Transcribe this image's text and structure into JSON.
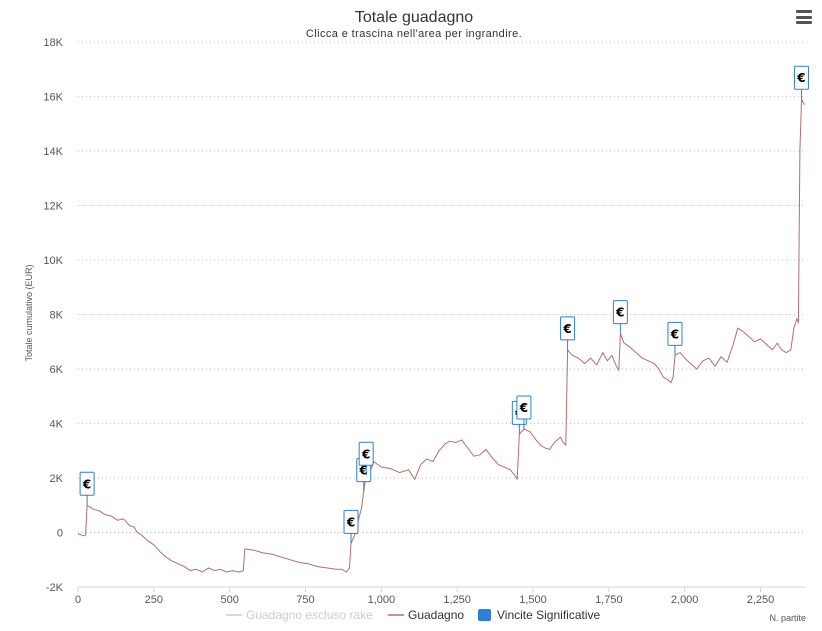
{
  "chart_data": {
    "type": "line",
    "title": "Totale guadagno",
    "subtitle": "Clicca e trascina nell'area per ingrandire.",
    "ylabel": "Totale cumulativo (EUR)",
    "xlabel": "N. partite",
    "xlim": [
      0,
      2400
    ],
    "ylim": [
      -2000,
      18000
    ],
    "x_ticks": [
      {
        "value": 0,
        "label": "0"
      },
      {
        "value": 250,
        "label": "250"
      },
      {
        "value": 500,
        "label": "500"
      },
      {
        "value": 750,
        "label": "750"
      },
      {
        "value": 1000,
        "label": "1,000"
      },
      {
        "value": 1250,
        "label": "1,250"
      },
      {
        "value": 1500,
        "label": "1,500"
      },
      {
        "value": 1750,
        "label": "1,750"
      },
      {
        "value": 2000,
        "label": "2,000"
      },
      {
        "value": 2250,
        "label": "2,250"
      }
    ],
    "y_ticks": [
      {
        "value": -2000,
        "label": "-2K"
      },
      {
        "value": 0,
        "label": "0"
      },
      {
        "value": 2000,
        "label": "2K"
      },
      {
        "value": 4000,
        "label": "4K"
      },
      {
        "value": 6000,
        "label": "6K"
      },
      {
        "value": 8000,
        "label": "8K"
      },
      {
        "value": 10000,
        "label": "10K"
      },
      {
        "value": 12000,
        "label": "12K"
      },
      {
        "value": 14000,
        "label": "14K"
      },
      {
        "value": 16000,
        "label": "16K"
      },
      {
        "value": 18000,
        "label": "18K"
      }
    ],
    "grid": "horizontal dotted",
    "legend_position": "bottom-center",
    "legend": [
      {
        "name": "Guadagno escluso rake",
        "color": "#cccccc",
        "kind": "line",
        "hidden": true
      },
      {
        "name": "Guadagno",
        "color": "#b56d6d",
        "kind": "line"
      },
      {
        "name": "Vincite Significative",
        "color": "#2f7ed8",
        "kind": "box"
      }
    ],
    "series": [
      {
        "name": "Guadagno",
        "color": "#b56d6d",
        "points": [
          [
            0,
            -50
          ],
          [
            20,
            -120
          ],
          [
            25,
            -100
          ],
          [
            30,
            1000
          ],
          [
            50,
            850
          ],
          [
            70,
            800
          ],
          [
            90,
            650
          ],
          [
            110,
            600
          ],
          [
            130,
            450
          ],
          [
            150,
            500
          ],
          [
            170,
            250
          ],
          [
            185,
            200
          ],
          [
            195,
            0
          ],
          [
            210,
            -100
          ],
          [
            230,
            -300
          ],
          [
            250,
            -450
          ],
          [
            270,
            -700
          ],
          [
            290,
            -900
          ],
          [
            310,
            -1050
          ],
          [
            330,
            -1150
          ],
          [
            350,
            -1250
          ],
          [
            370,
            -1400
          ],
          [
            390,
            -1350
          ],
          [
            410,
            -1450
          ],
          [
            430,
            -1300
          ],
          [
            450,
            -1400
          ],
          [
            470,
            -1350
          ],
          [
            490,
            -1450
          ],
          [
            510,
            -1400
          ],
          [
            530,
            -1450
          ],
          [
            545,
            -1400
          ],
          [
            550,
            -600
          ],
          [
            580,
            -650
          ],
          [
            610,
            -750
          ],
          [
            640,
            -800
          ],
          [
            670,
            -900
          ],
          [
            700,
            -1000
          ],
          [
            730,
            -1100
          ],
          [
            760,
            -1150
          ],
          [
            790,
            -1250
          ],
          [
            820,
            -1300
          ],
          [
            850,
            -1350
          ],
          [
            870,
            -1350
          ],
          [
            885,
            -1450
          ],
          [
            895,
            -1300
          ],
          [
            900,
            -400
          ],
          [
            910,
            -150
          ],
          [
            918,
            100
          ],
          [
            925,
            500
          ],
          [
            935,
            900
          ],
          [
            942,
            1500
          ],
          [
            950,
            2100
          ],
          [
            960,
            2150
          ],
          [
            975,
            2600
          ],
          [
            1000,
            2400
          ],
          [
            1030,
            2350
          ],
          [
            1060,
            2200
          ],
          [
            1090,
            2300
          ],
          [
            1110,
            1950
          ],
          [
            1130,
            2500
          ],
          [
            1150,
            2700
          ],
          [
            1170,
            2600
          ],
          [
            1190,
            3000
          ],
          [
            1210,
            3250
          ],
          [
            1225,
            3350
          ],
          [
            1245,
            3300
          ],
          [
            1265,
            3400
          ],
          [
            1285,
            3100
          ],
          [
            1305,
            2800
          ],
          [
            1325,
            2850
          ],
          [
            1345,
            3050
          ],
          [
            1365,
            2750
          ],
          [
            1385,
            2500
          ],
          [
            1405,
            2400
          ],
          [
            1425,
            2300
          ],
          [
            1440,
            2100
          ],
          [
            1448,
            1950
          ],
          [
            1455,
            3600
          ],
          [
            1470,
            3800
          ],
          [
            1490,
            3700
          ],
          [
            1510,
            3400
          ],
          [
            1525,
            3200
          ],
          [
            1540,
            3100
          ],
          [
            1555,
            3050
          ],
          [
            1570,
            3300
          ],
          [
            1590,
            3500
          ],
          [
            1600,
            3300
          ],
          [
            1608,
            3200
          ],
          [
            1614,
            6700
          ],
          [
            1630,
            6500
          ],
          [
            1650,
            6400
          ],
          [
            1670,
            6200
          ],
          [
            1690,
            6400
          ],
          [
            1710,
            6150
          ],
          [
            1730,
            6600
          ],
          [
            1745,
            6300
          ],
          [
            1760,
            6500
          ],
          [
            1775,
            6100
          ],
          [
            1783,
            5950
          ],
          [
            1788,
            7300
          ],
          [
            1800,
            6950
          ],
          [
            1820,
            6800
          ],
          [
            1840,
            6600
          ],
          [
            1860,
            6400
          ],
          [
            1880,
            6300
          ],
          [
            1900,
            6200
          ],
          [
            1915,
            6000
          ],
          [
            1930,
            5700
          ],
          [
            1945,
            5600
          ],
          [
            1955,
            5500
          ],
          [
            1962,
            5700
          ],
          [
            1968,
            6500
          ],
          [
            1985,
            6600
          ],
          [
            2000,
            6400
          ],
          [
            2020,
            6200
          ],
          [
            2040,
            6000
          ],
          [
            2060,
            6300
          ],
          [
            2080,
            6400
          ],
          [
            2100,
            6100
          ],
          [
            2120,
            6450
          ],
          [
            2140,
            6250
          ],
          [
            2160,
            6900
          ],
          [
            2175,
            7500
          ],
          [
            2190,
            7400
          ],
          [
            2210,
            7200
          ],
          [
            2230,
            7000
          ],
          [
            2250,
            7100
          ],
          [
            2270,
            6900
          ],
          [
            2290,
            6700
          ],
          [
            2305,
            6950
          ],
          [
            2320,
            6700
          ],
          [
            2335,
            6600
          ],
          [
            2350,
            6700
          ],
          [
            2360,
            7500
          ],
          [
            2370,
            7850
          ],
          [
            2375,
            7700
          ],
          [
            2380,
            14000
          ],
          [
            2385,
            15900
          ],
          [
            2395,
            15700
          ]
        ]
      }
    ],
    "significant_wins": [
      {
        "x": 30,
        "y": 1000,
        "label": "€"
      },
      {
        "x": 900,
        "y": -400,
        "label": "€"
      },
      {
        "x": 942,
        "y": 1500,
        "label": "€"
      },
      {
        "x": 950,
        "y": 2100,
        "label": "€"
      },
      {
        "x": 1455,
        "y": 3600,
        "label": "€"
      },
      {
        "x": 1470,
        "y": 3800,
        "label": "€"
      },
      {
        "x": 1614,
        "y": 6700,
        "label": "€"
      },
      {
        "x": 1788,
        "y": 7300,
        "label": "€"
      },
      {
        "x": 1968,
        "y": 6500,
        "label": "€"
      },
      {
        "x": 2385,
        "y": 15900,
        "label": "€"
      }
    ]
  },
  "menu": {
    "icon": "hamburger-menu-icon"
  }
}
